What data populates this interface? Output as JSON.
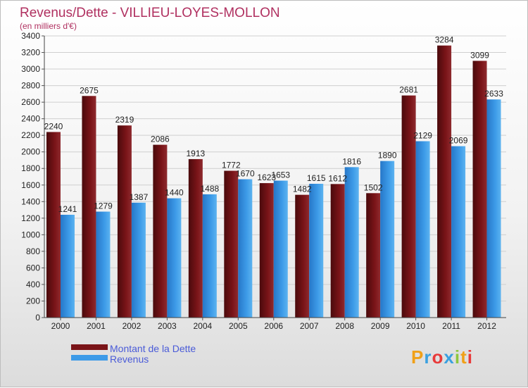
{
  "chart_data": {
    "type": "bar",
    "title": "Revenus/Dette - VILLIEU-LOYES-MOLLON",
    "subtitle": "(en milliers d'€)",
    "categories": [
      "2000",
      "2001",
      "2002",
      "2003",
      "2004",
      "2005",
      "2006",
      "2007",
      "2008",
      "2009",
      "2010",
      "2011",
      "2012"
    ],
    "series": [
      {
        "name": "Montant de la Dette",
        "color": "#7a1418",
        "values": [
          2240,
          2675,
          2319,
          2086,
          1913,
          1772,
          1623,
          1482,
          1612,
          1502,
          2681,
          3284,
          3099
        ]
      },
      {
        "name": "Revenus",
        "color": "#3d9be8",
        "values": [
          1241,
          1279,
          1387,
          1440,
          1488,
          1670,
          1653,
          1615,
          1816,
          1890,
          2129,
          2069,
          2633
        ]
      }
    ],
    "ylim": [
      0,
      3400
    ],
    "ytick_step": 200,
    "grid": true,
    "legend_position": "bottom-left"
  },
  "watermark": "Proxiti"
}
